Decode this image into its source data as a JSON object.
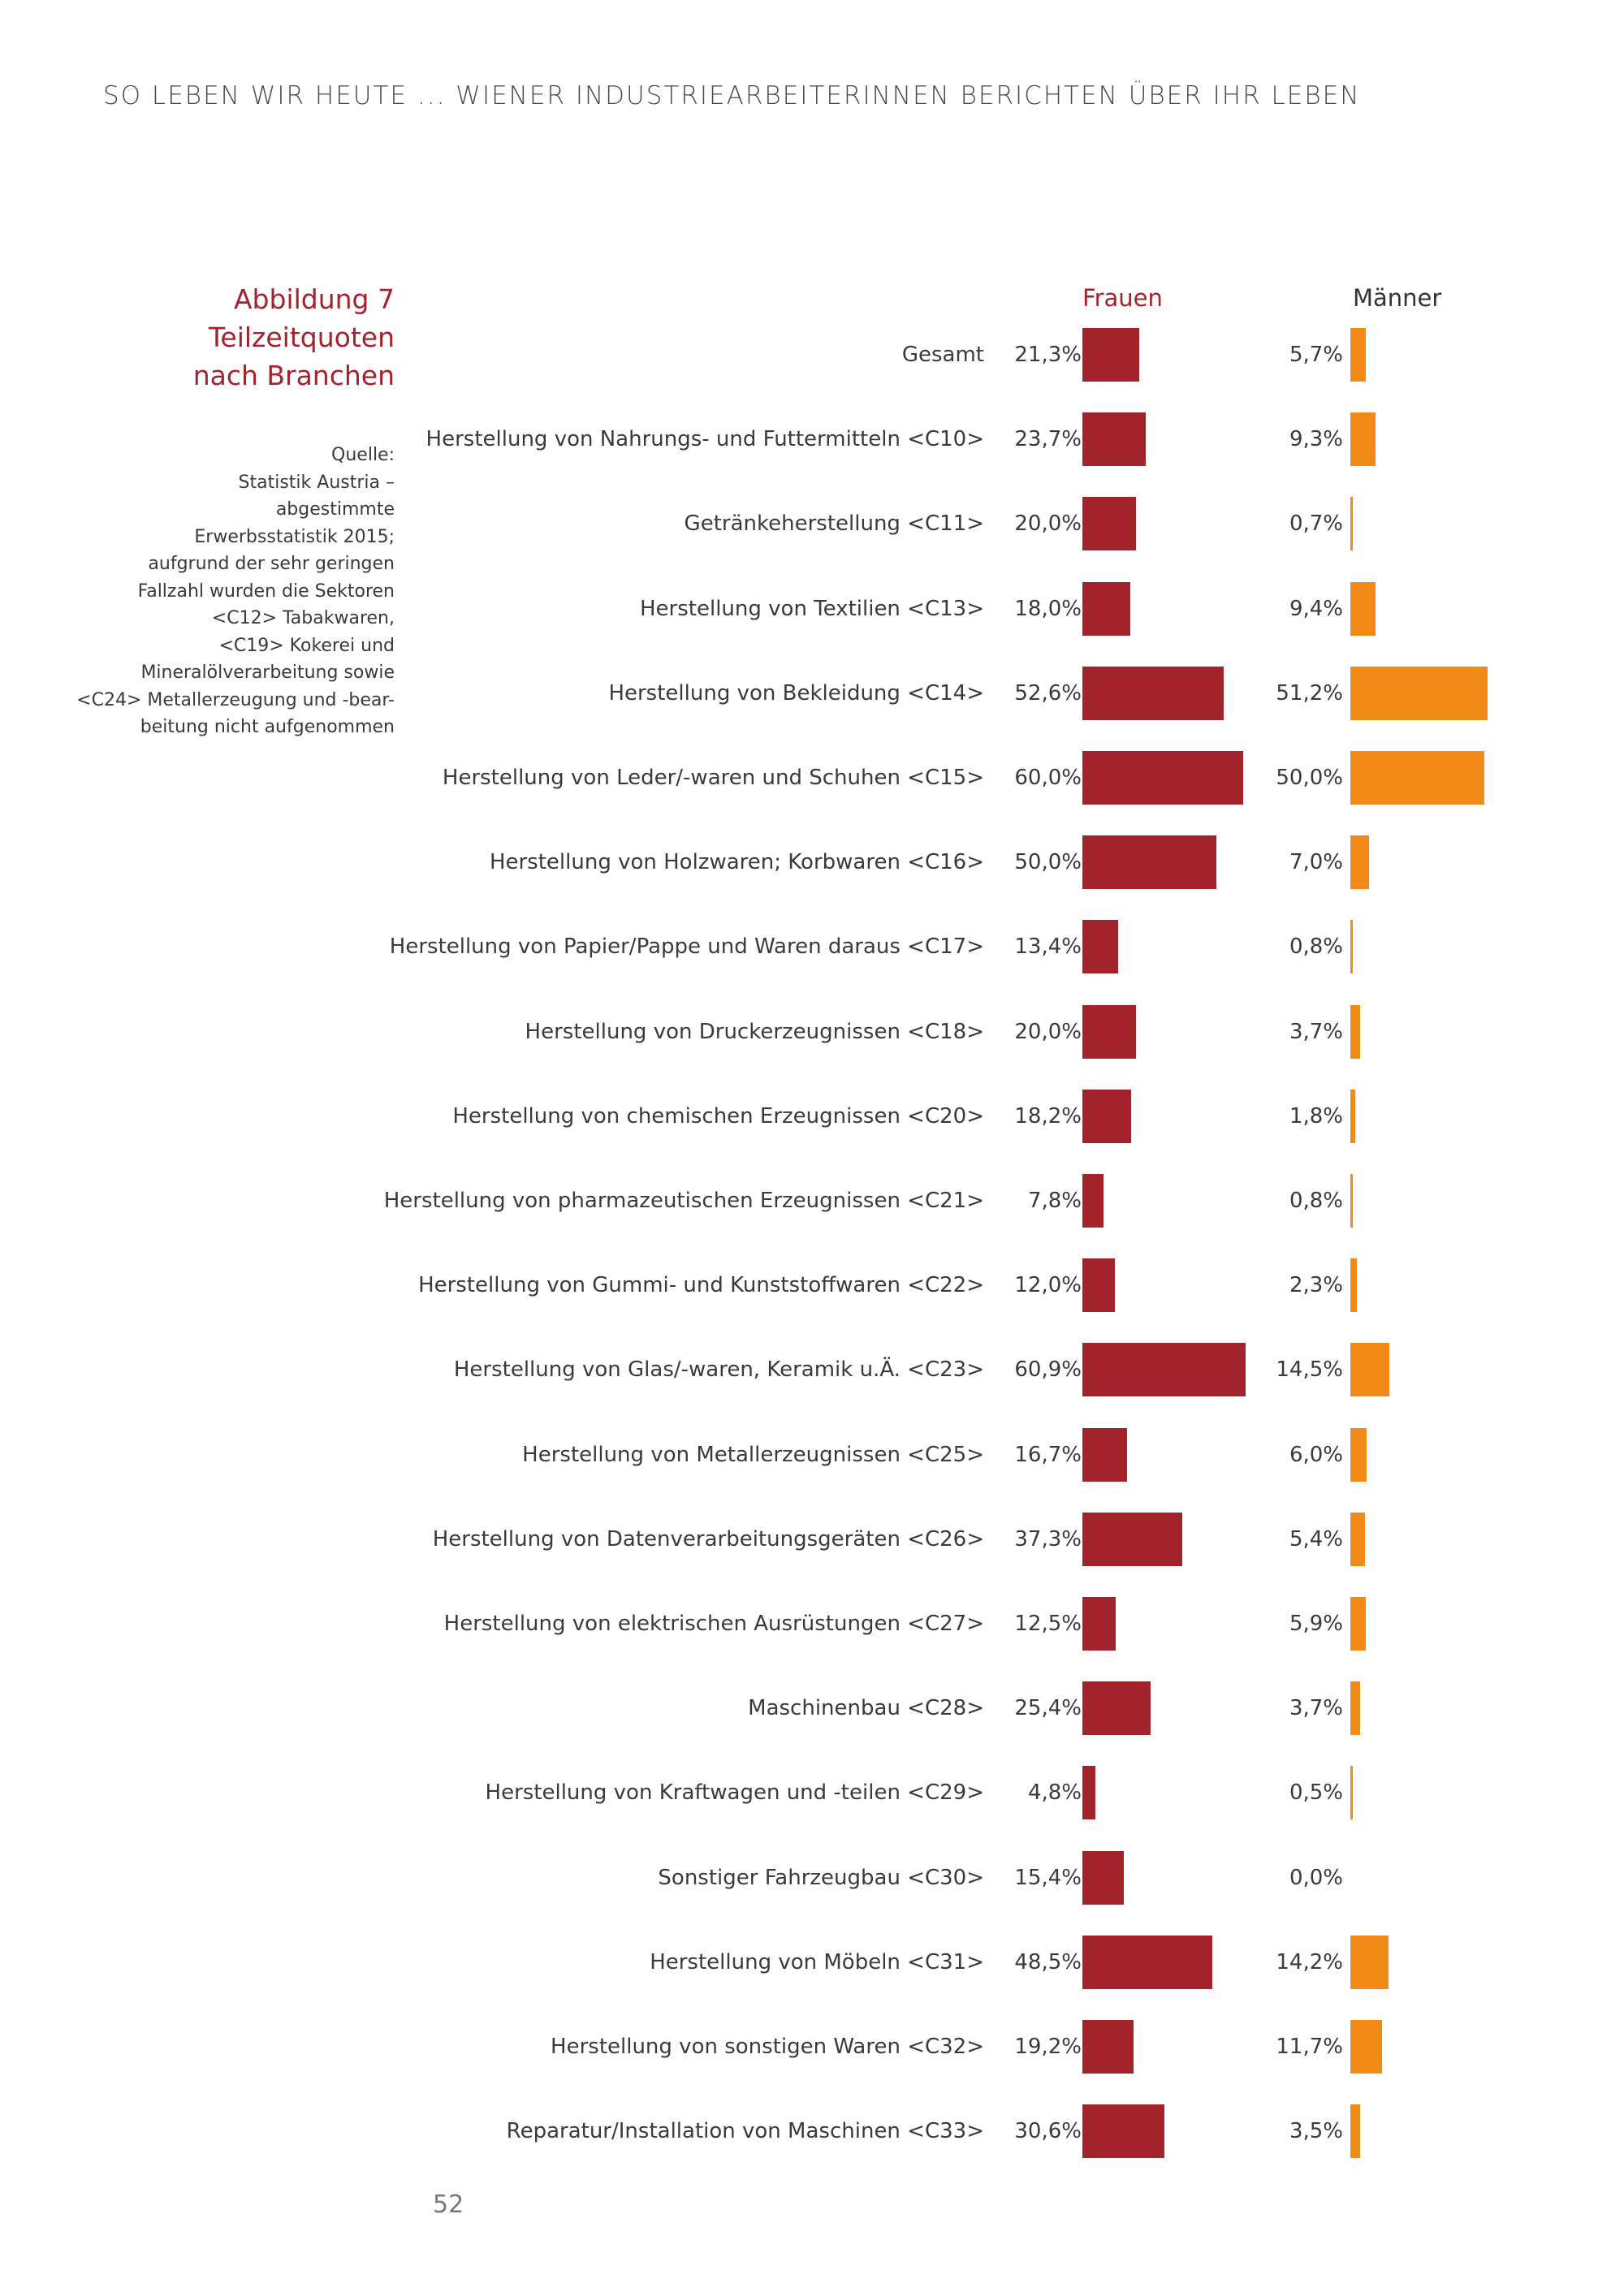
{
  "header": {
    "running_title": "SO LEBEN WIR HEUTE ... WIENER INDUSTRIEARBEITERINNEN BERICHTEN ÜBER IHR LEBEN"
  },
  "figure": {
    "title_lines": [
      "Abbildung 7",
      "Teilzeitquoten",
      "nach Branchen"
    ],
    "source_lines": [
      "Quelle:",
      "Statistik Austria –",
      "abgestimmte",
      "Erwerbsstatistik 2015;",
      "aufgrund der sehr geringen",
      "Fallzahl wurden die Sektoren",
      "<C12> Tabakwaren,",
      "<C19> Kokerei und",
      "Mineralölverarbeitung sowie",
      "<C24> Metallerzeugung und -bear-",
      "beitung nicht aufgenommen"
    ]
  },
  "page_number": "52",
  "colors": {
    "frauen": "#a3232d",
    "maenner": "#f28a17"
  },
  "chart_data": {
    "type": "bar",
    "orientation": "horizontal",
    "title": "Teilzeitquoten nach Branchen",
    "unit": "%",
    "xlim": [
      0,
      100
    ],
    "grid": false,
    "legend": "top",
    "categories": [
      "Gesamt",
      "Herstellung von Nahrungs- und Futtermitteln <C10>",
      "Getränkeherstellung <C11>",
      "Herstellung von Textilien <C13>",
      "Herstellung von Bekleidung <C14>",
      "Herstellung von Leder/-waren und Schuhen <C15>",
      "Herstellung von Holzwaren; Korbwaren <C16>",
      "Herstellung von Papier/Pappe und Waren daraus <C17>",
      "Herstellung von Druckerzeugnissen <C18>",
      "Herstellung von chemischen Erzeugnissen <C20>",
      "Herstellung von pharmazeutischen Erzeugnissen <C21>",
      "Herstellung von Gummi- und Kunststoffwaren <C22>",
      "Herstellung von Glas/-waren, Keramik u.Ä. <C23>",
      "Herstellung von Metallerzeugnissen <C25>",
      "Herstellung von Datenverarbeitungsgeräten <C26>",
      "Herstellung von elektrischen Ausrüstungen <C27>",
      "Maschinenbau <C28>",
      "Herstellung von Kraftwagen und -teilen <C29>",
      "Sonstiger Fahrzeugbau <C30>",
      "Herstellung von Möbeln <C31>",
      "Herstellung von sonstigen Waren <C32>",
      "Reparatur/Installation von Maschinen <C33>"
    ],
    "series": [
      {
        "name": "Frauen",
        "values": [
          21.3,
          23.7,
          20.0,
          18.0,
          52.6,
          60.0,
          50.0,
          13.4,
          20.0,
          18.2,
          7.8,
          12.0,
          60.9,
          16.7,
          37.3,
          12.5,
          25.4,
          4.8,
          15.4,
          48.5,
          19.2,
          30.6
        ],
        "labels": [
          "21,3%",
          "23,7%",
          "20,0%",
          "18,0%",
          "52,6%",
          "60,0%",
          "50,0%",
          "13,4%",
          "20,0%",
          "18,2%",
          "7,8%",
          "12,0%",
          "60,9%",
          "16,7%",
          "37,3%",
          "12,5%",
          "25,4%",
          "4,8%",
          "15,4%",
          "48,5%",
          "19,2%",
          "30,6%"
        ]
      },
      {
        "name": "Männer",
        "values": [
          5.7,
          9.3,
          0.7,
          9.4,
          51.2,
          50.0,
          7.0,
          0.8,
          3.7,
          1.8,
          0.8,
          2.3,
          14.5,
          6.0,
          5.4,
          5.9,
          3.7,
          0.5,
          0.0,
          14.2,
          11.7,
          3.5
        ],
        "labels": [
          "5,7%",
          "9,3%",
          "0,7%",
          "9,4%",
          "51,2%",
          "50,0%",
          "7,0%",
          "0,8%",
          "3,7%",
          "1,8%",
          "0,8%",
          "2,3%",
          "14,5%",
          "6,0%",
          "5,4%",
          "5,9%",
          "3,7%",
          "0,5%",
          "0,0%",
          "14,2%",
          "11,7%",
          "3,5%"
        ]
      }
    ]
  }
}
